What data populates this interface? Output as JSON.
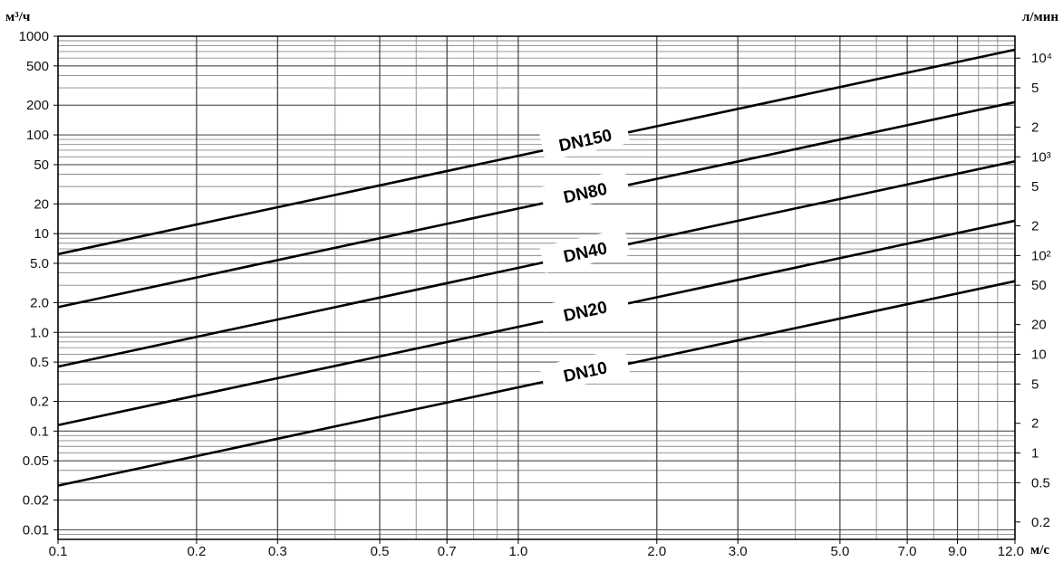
{
  "chart_data": {
    "type": "line",
    "x_scale": "log",
    "y_scale": "log",
    "grid": true,
    "ylabel_left": "м³/ч",
    "ylabel_right": "л/мин",
    "xlabel": "м/с",
    "xlim": [
      0.1,
      12.0
    ],
    "ylim": [
      0.008,
      1000
    ],
    "x_ticks": [
      "0.1",
      "0.2",
      "0.3",
      "0.5",
      "0.7",
      "1.0",
      "2.0",
      "3.0",
      "5.0",
      "7.0",
      "9.0",
      "12.0"
    ],
    "y_ticks_left": [
      "1000",
      "500",
      "200",
      "100",
      "50",
      "20",
      "10",
      "5.0",
      "2.0",
      "1.0",
      "0.5",
      "0.2",
      "0.1",
      "0.05",
      "0.02",
      "0.01"
    ],
    "y_ticks_right": [
      "10⁴",
      "5",
      "2",
      "10³",
      "5",
      "2",
      "10²",
      "50",
      "20",
      "10",
      "5",
      "2",
      "1",
      "0.5",
      "0.2"
    ],
    "series": [
      {
        "name": "DN150",
        "x": [
          0.1,
          12.0
        ],
        "y": [
          6.2,
          730
        ]
      },
      {
        "name": "DN80",
        "x": [
          0.1,
          12.0
        ],
        "y": [
          1.8,
          215
        ]
      },
      {
        "name": "DN40",
        "x": [
          0.1,
          12.0
        ],
        "y": [
          0.45,
          54
        ]
      },
      {
        "name": "DN20",
        "x": [
          0.1,
          12.0
        ],
        "y": [
          0.115,
          13.5
        ]
      },
      {
        "name": "DN10",
        "x": [
          0.1,
          12.0
        ],
        "y": [
          0.028,
          3.3
        ]
      }
    ]
  }
}
